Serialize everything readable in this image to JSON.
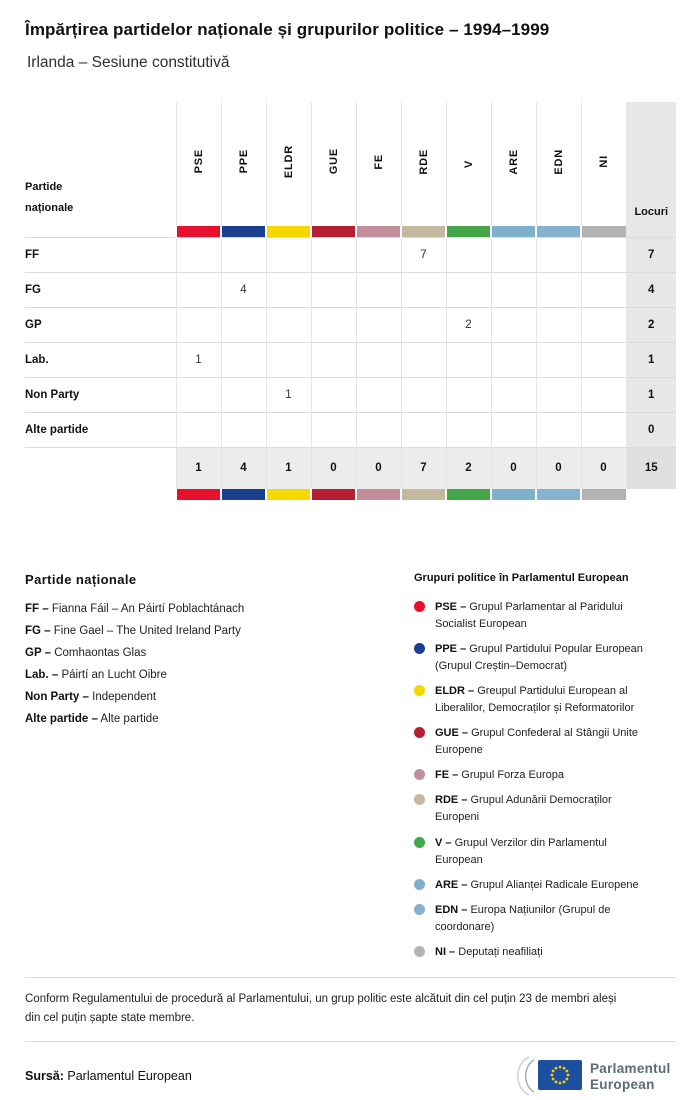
{
  "header": {
    "title": "Împărțirea partidelor naționale și grupurilor politice – 1994–1999",
    "subtitle": "Irlanda – Sesiune constitutivă"
  },
  "chart_data": {
    "type": "table",
    "title": "Împărțirea partidelor naționale și grupurilor politice – 1994–1999",
    "subtitle": "Irlanda – Sesiune constitutivă",
    "corner_label": "Partide\nnaționale",
    "seats_label": "Locuri",
    "groups": [
      {
        "code": "PSE",
        "color": "#e8112d"
      },
      {
        "code": "PPE",
        "color": "#1b3f8f"
      },
      {
        "code": "ELDR",
        "color": "#f5d800"
      },
      {
        "code": "GUE",
        "color": "#b41f34"
      },
      {
        "code": "FE",
        "color": "#c28e9c"
      },
      {
        "code": "RDE",
        "color": "#c4b89e"
      },
      {
        "code": "V",
        "color": "#44a649"
      },
      {
        "code": "ARE",
        "color": "#7fb0cc"
      },
      {
        "code": "EDN",
        "color": "#84b2cf"
      },
      {
        "code": "NI",
        "color": "#b3b3b3"
      }
    ],
    "rows": [
      {
        "label": "FF",
        "values": [
          "",
          "",
          "",
          "",
          "",
          "7",
          "",
          "",
          "",
          ""
        ],
        "total": "7"
      },
      {
        "label": "FG",
        "values": [
          "",
          "4",
          "",
          "",
          "",
          "",
          "",
          "",
          "",
          ""
        ],
        "total": "4"
      },
      {
        "label": "GP",
        "values": [
          "",
          "",
          "",
          "",
          "",
          "",
          "2",
          "",
          "",
          ""
        ],
        "total": "2"
      },
      {
        "label": "Lab.",
        "values": [
          "1",
          "",
          "",
          "",
          "",
          "",
          "",
          "",
          "",
          ""
        ],
        "total": "1"
      },
      {
        "label": "Non Party",
        "values": [
          "",
          "",
          "1",
          "",
          "",
          "",
          "",
          "",
          "",
          ""
        ],
        "total": "1"
      },
      {
        "label": "Alte partide",
        "values": [
          "",
          "",
          "",
          "",
          "",
          "",
          "",
          "",
          "",
          ""
        ],
        "total": "0"
      }
    ],
    "totals": {
      "values": [
        "1",
        "4",
        "1",
        "0",
        "0",
        "7",
        "2",
        "0",
        "0",
        "0"
      ],
      "total": "15"
    }
  },
  "legend_parties": {
    "title": "Partide naționale",
    "items": [
      {
        "code": "FF –",
        "text": "Fianna Fáil – An Páirtí Poblachtánach"
      },
      {
        "code": "FG –",
        "text": "Fine Gael – The United Ireland Party"
      },
      {
        "code": "GP –",
        "text": "Comhaontas Glas"
      },
      {
        "code": "Lab. –",
        "text": "Páirtí an Lucht Oibre"
      },
      {
        "code": "Non Party –",
        "text": "Independent"
      },
      {
        "code": "Alte partide –",
        "text": "Alte partide"
      }
    ]
  },
  "legend_groups": {
    "title": "Grupuri politice în Parlamentul European",
    "items": [
      {
        "code": "PSE –",
        "color": "#e8112d",
        "text": "Grupul Parlamentar al Paridului\nSocialist European"
      },
      {
        "code": "PPE –",
        "color": "#1b3f8f",
        "text": "Grupul Partidului Popular European\n(Grupul Creștin–Democrat)"
      },
      {
        "code": "ELDR –",
        "color": "#f5d800",
        "text": "Greupul Partidului European al\nLiberalilor, Democraților și Reformatorilor"
      },
      {
        "code": "GUE –",
        "color": "#b41f34",
        "text": "Grupul Confederal al Stângii Unite\nEuropene"
      },
      {
        "code": "FE –",
        "color": "#c28e9c",
        "text": "Grupul Forza Europa"
      },
      {
        "code": "RDE –",
        "color": "#c4b89e",
        "text": "Grupul Adunării Democraților\nEuropeni"
      },
      {
        "code": "V –",
        "color": "#44a649",
        "text": "Grupul Verzilor din Parlamentul\nEuropean"
      },
      {
        "code": "ARE –",
        "color": "#7fb0cc",
        "text": "Grupul Alianței Radicale Europene"
      },
      {
        "code": "EDN –",
        "color": "#84b2cf",
        "text": "Europa Națiunilor (Grupul de\ncoordonare)"
      },
      {
        "code": "NI –",
        "color": "#b3b3b3",
        "text": "Deputați neafiliați"
      }
    ]
  },
  "footer": {
    "note": "Conform Regulamentului de procedură al Parlamentului, un grup politic este alcătuit din cel puțin 23 de membri aleși\ndin cel puțin șapte state membre.",
    "source_label": "Sursă:",
    "source_text": "Parlamentul European",
    "logo_line1": "Parlamentul",
    "logo_line2": "European"
  }
}
